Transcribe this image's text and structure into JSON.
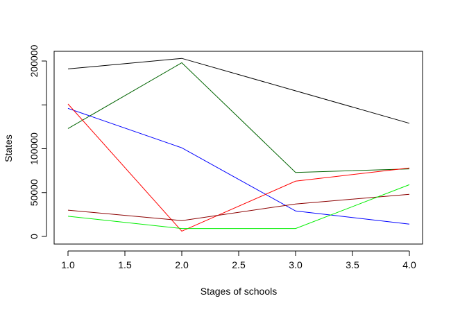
{
  "chart_data": {
    "type": "line",
    "title": "",
    "xlabel": "Stages of schools",
    "ylabel": "States",
    "x": [
      1,
      2,
      3,
      4
    ],
    "xlim": [
      1,
      4
    ],
    "ylim": [
      0,
      205000
    ],
    "xticks": [
      1.0,
      1.5,
      2.0,
      2.5,
      3.0,
      3.5,
      4.0
    ],
    "xtick_labels": [
      "1.0",
      "1.5",
      "2.0",
      "2.5",
      "3.0",
      "3.5",
      "4.0"
    ],
    "yticks": [
      0,
      50000,
      100000,
      150000,
      200000
    ],
    "ytick_labels": [
      "0",
      "50000",
      "100000",
      "",
      "200000"
    ],
    "grid": false,
    "legend": "none",
    "series": [
      {
        "color": "#000000",
        "values": [
          191000,
          203000,
          166000,
          129000
        ]
      },
      {
        "color": "#006400",
        "values": [
          123000,
          198000,
          73000,
          77000
        ]
      },
      {
        "color": "#0000ff",
        "values": [
          146000,
          101000,
          29000,
          14000
        ]
      },
      {
        "color": "#ff0000",
        "values": [
          151000,
          6000,
          63000,
          78000
        ]
      },
      {
        "color": "#8b0000",
        "values": [
          30000,
          18000,
          37000,
          48000
        ]
      },
      {
        "color": "#00ee00",
        "values": [
          23000,
          9000,
          9000,
          59000
        ]
      }
    ]
  }
}
